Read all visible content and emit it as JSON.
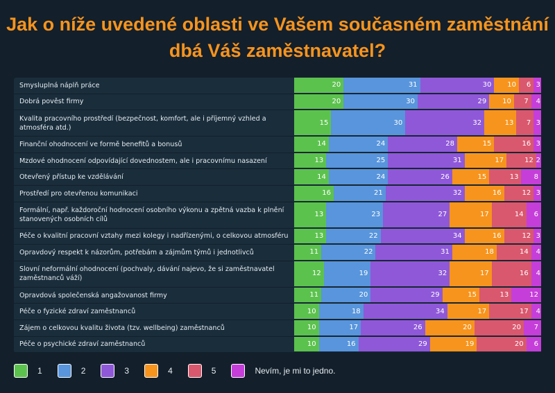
{
  "chart_data": {
    "type": "bar",
    "orientation": "horizontal-stacked",
    "title": "Jak o níže uvedené oblasti ve Vašem současném zaměstnání dbá Váš zaměstnavatel?",
    "categories": [
      "Smysluplná náplň práce",
      "Dobrá pověst firmy",
      "Kvalita pracovního prostředí (bezpečnost, komfort, ale i příjemný vzhled a atmosféra atd.)",
      "Finanční ohodnocení ve formě benefitů a bonusů",
      "Mzdové ohodnocení odpovídající dovednostem, ale i pracovnímu nasazení",
      "Otevřený přístup ke vzdělávání",
      "Prostředí pro otevřenou komunikaci",
      "Formální, např. každoroční hodnocení osobního výkonu a zpětná vazba k plnění stanovených osobních cílů",
      "Péče o kvalitní pracovní vztahy mezi kolegy i nadřízenými, o celkovou atmosféru",
      "Opravdový respekt k názorům, potřebám a zájmům týmů i jednotlivců",
      "Slovní neformální ohodnocení (pochvaly, dávání najevo, že si zaměstnavatel zaměstnanců váží)",
      "Opravdová společenská angažovanost firmy",
      "Péče o fyzické zdraví zaměstnanců",
      "Zájem o celkovou kvalitu života (tzv. wellbeing) zaměstnanců",
      "Péče o psychické zdraví zaměstnanců"
    ],
    "two_line": [
      false,
      false,
      true,
      false,
      false,
      false,
      false,
      true,
      false,
      false,
      true,
      false,
      false,
      false,
      false
    ],
    "series": [
      {
        "name": "1",
        "color": "#5cc24e",
        "values": [
          20,
          20,
          15,
          14,
          13,
          14,
          16,
          13,
          13,
          11,
          12,
          11,
          10,
          10,
          10
        ]
      },
      {
        "name": "2",
        "color": "#5895dc",
        "values": [
          31,
          30,
          30,
          24,
          25,
          24,
          21,
          23,
          22,
          22,
          19,
          20,
          18,
          17,
          16
        ]
      },
      {
        "name": "3",
        "color": "#8f58d9",
        "values": [
          30,
          29,
          32,
          28,
          31,
          26,
          32,
          27,
          34,
          31,
          32,
          29,
          34,
          26,
          29
        ]
      },
      {
        "name": "4",
        "color": "#f7941d",
        "values": [
          10,
          10,
          13,
          15,
          17,
          15,
          16,
          17,
          16,
          18,
          17,
          15,
          17,
          20,
          19
        ]
      },
      {
        "name": "5",
        "color": "#d9586e",
        "values": [
          6,
          7,
          7,
          16,
          12,
          13,
          12,
          14,
          12,
          14,
          16,
          13,
          17,
          20,
          20
        ]
      },
      {
        "name": "Nevím, je mi to jedno.",
        "color": "#c53ed9",
        "values": [
          3,
          4,
          3,
          3,
          2,
          8,
          3,
          6,
          3,
          4,
          4,
          12,
          4,
          7,
          6
        ]
      }
    ],
    "legend": "bottom"
  }
}
